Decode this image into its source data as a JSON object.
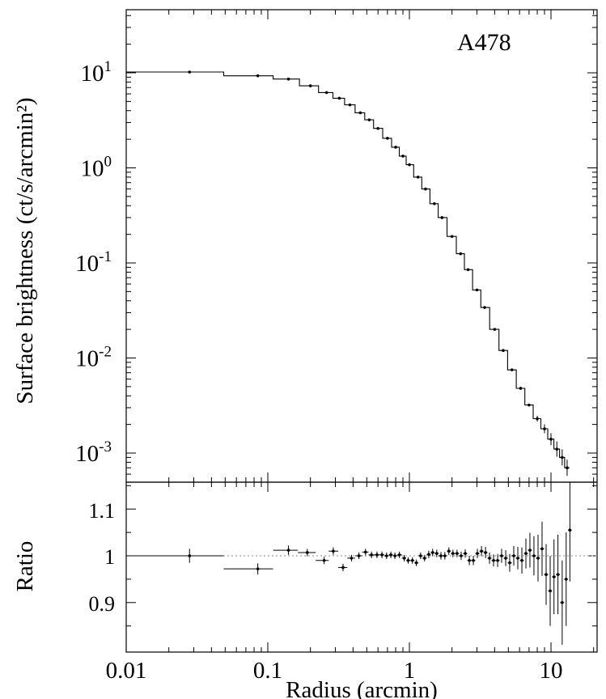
{
  "chart_data": [
    {
      "type": "line",
      "title": "A478",
      "xlabel": "Radius (arcmin)",
      "ylabel": "Surface brightness (ct/s/arcmin²)",
      "xscale": "log",
      "yscale": "log",
      "xlim": [
        0.01,
        20
      ],
      "ylim": [
        0.0005,
        50
      ],
      "x_tick_labels": [
        "0.01",
        "0.1",
        "1",
        "10"
      ],
      "y_tick_labels": [
        {
          "base": "10",
          "exp": "1",
          "value": 10
        },
        {
          "base": "10",
          "exp": "0",
          "value": 1
        },
        {
          "base": "10",
          "exp": "-1",
          "value": 0.1
        },
        {
          "base": "10",
          "exp": "-2",
          "value": 0.01
        },
        {
          "base": "10",
          "exp": "-3",
          "value": 0.001
        }
      ],
      "series": [
        {
          "style": "data points with error bars, model shown as histogram steps",
          "x": [
            0.028,
            0.085,
            0.14,
            0.2,
            0.26,
            0.32,
            0.38,
            0.45,
            0.52,
            0.6,
            0.7,
            0.8,
            0.9,
            1.0,
            1.15,
            1.3,
            1.5,
            1.7,
            2.0,
            2.3,
            2.6,
            3.0,
            3.4,
            4.0,
            4.6,
            5.3,
            6.1,
            7.0,
            8.0,
            9.0,
            10.0,
            11.0,
            12.0,
            13.0
          ],
          "y": [
            10.2,
            9.3,
            8.6,
            7.3,
            6.2,
            5.4,
            4.6,
            3.8,
            3.2,
            2.6,
            2.05,
            1.65,
            1.33,
            1.08,
            0.8,
            0.6,
            0.42,
            0.3,
            0.19,
            0.125,
            0.085,
            0.052,
            0.034,
            0.02,
            0.012,
            0.0075,
            0.0048,
            0.0032,
            0.0023,
            0.0018,
            0.0014,
            0.0011,
            0.0009,
            0.0007
          ]
        }
      ]
    },
    {
      "type": "scatter",
      "ylabel": "Ratio",
      "xlabel": "Radius (arcmin)",
      "xscale": "log",
      "xlim": [
        0.01,
        20
      ],
      "ylim": [
        0.82,
        1.2
      ],
      "y_tick_labels": [
        "1.1",
        "1",
        "0.9"
      ],
      "reference_line": 1,
      "series": [
        {
          "x": [
            0.028,
            0.085,
            0.14,
            0.19,
            0.25,
            0.29,
            0.34,
            0.39,
            0.44,
            0.49,
            0.54,
            0.59,
            0.64,
            0.69,
            0.74,
            0.79,
            0.85,
            0.92,
            0.98,
            1.05,
            1.12,
            1.2,
            1.28,
            1.37,
            1.46,
            1.56,
            1.67,
            1.78,
            1.9,
            2.03,
            2.17,
            2.32,
            2.48,
            2.65,
            2.83,
            3.02,
            3.23,
            3.45,
            3.68,
            3.93,
            4.2,
            4.48,
            4.79,
            5.11,
            5.46,
            5.83,
            6.23,
            6.65,
            7.1,
            7.58,
            8.1,
            8.65,
            9.24,
            9.87,
            10.5,
            11.2,
            12.0,
            12.8,
            13.6
          ],
          "y": [
            1.0,
            0.972,
            1.012,
            1.007,
            0.99,
            1.01,
            0.975,
            0.995,
            1.0,
            1.008,
            1.002,
            1.002,
            1.002,
            1.0,
            1.002,
            1.0,
            1.002,
            0.995,
            0.99,
            0.99,
            0.985,
            1.0,
            0.995,
            1.003,
            1.007,
            1.005,
            1.0,
            1.0,
            1.01,
            1.005,
            1.005,
            1.0,
            1.005,
            0.99,
            0.99,
            1.005,
            1.01,
            1.007,
            0.995,
            0.99,
            0.99,
            1.0,
            0.995,
            0.985,
            1.0,
            0.995,
            0.99,
            1.005,
            1.012,
            1.0,
            0.995,
            1.015,
            0.96,
            0.925,
            0.955,
            0.96,
            0.9,
            0.95,
            1.055
          ],
          "yerr": [
            0.015,
            0.012,
            0.01,
            0.008,
            0.008,
            0.008,
            0.008,
            0.007,
            0.007,
            0.007,
            0.007,
            0.007,
            0.007,
            0.007,
            0.007,
            0.007,
            0.007,
            0.007,
            0.007,
            0.007,
            0.007,
            0.007,
            0.007,
            0.008,
            0.008,
            0.008,
            0.008,
            0.008,
            0.008,
            0.008,
            0.008,
            0.009,
            0.009,
            0.01,
            0.01,
            0.01,
            0.011,
            0.012,
            0.012,
            0.013,
            0.014,
            0.015,
            0.017,
            0.019,
            0.021,
            0.024,
            0.028,
            0.032,
            0.037,
            0.042,
            0.05,
            0.058,
            0.065,
            0.075,
            0.08,
            0.085,
            0.09,
            0.1,
            0.11
          ]
        }
      ]
    }
  ]
}
